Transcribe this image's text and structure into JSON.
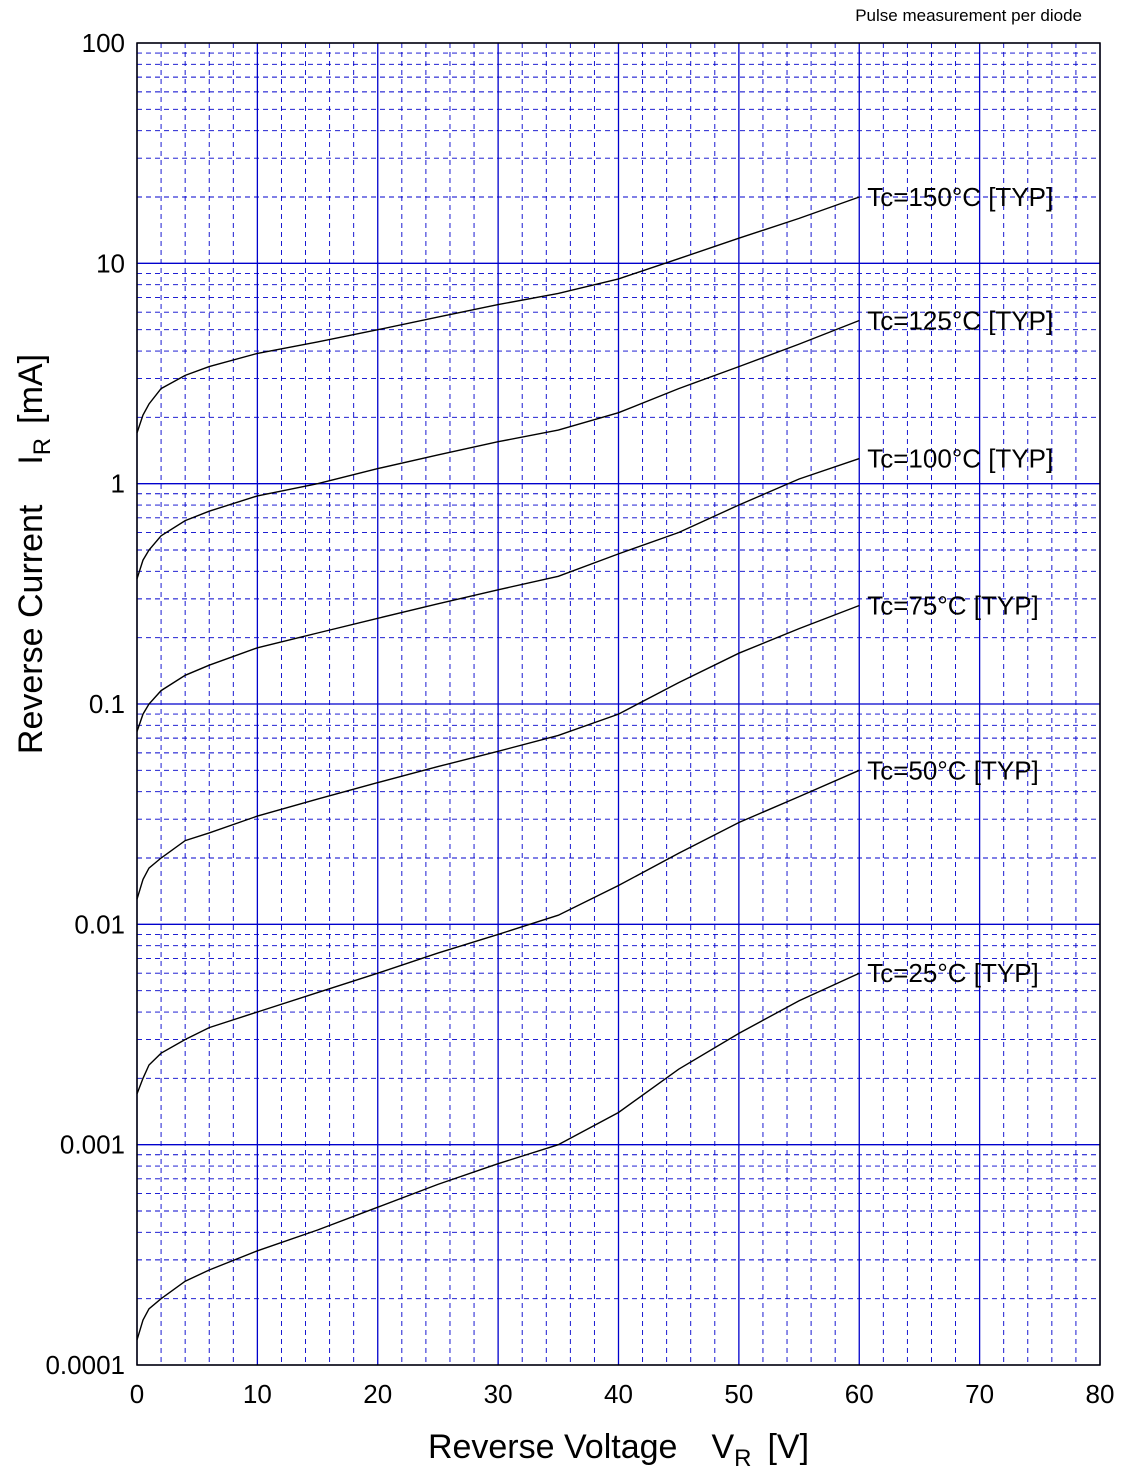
{
  "chart_data": {
    "type": "line",
    "title": "",
    "note": "Pulse measurement per diode",
    "xlabel": {
      "main": "Reverse Voltage",
      "symbol": "V",
      "sub": "R",
      "unit": "[V]"
    },
    "ylabel": {
      "main": "Reverse Current",
      "symbol": "I",
      "sub": "R",
      "unit": "[mA]"
    },
    "xlim": [
      0,
      80
    ],
    "ylim": [
      0.0001,
      100
    ],
    "yscale": "log",
    "grid": true,
    "x_ticks": [
      "0",
      "10",
      "20",
      "30",
      "40",
      "50",
      "60",
      "70",
      "80"
    ],
    "y_ticks": [
      "0.0001",
      "0.001",
      "0.01",
      "0.1",
      "1",
      "10",
      "100"
    ],
    "series": [
      {
        "name": "Tc=150°C [TYP]",
        "x": [
          0,
          0.5,
          1,
          2,
          4,
          6,
          10,
          15,
          20,
          25,
          30,
          35,
          40,
          45,
          50,
          55,
          60
        ],
        "y": [
          1.7,
          2.05,
          2.3,
          2.7,
          3.1,
          3.4,
          3.9,
          4.4,
          5.0,
          5.7,
          6.5,
          7.3,
          8.5,
          10.5,
          13.0,
          16.0,
          20.0
        ]
      },
      {
        "name": "Tc=125°C [TYP]",
        "x": [
          0,
          0.5,
          1,
          2,
          4,
          6,
          10,
          15,
          20,
          25,
          30,
          35,
          40,
          45,
          50,
          55,
          60
        ],
        "y": [
          0.37,
          0.45,
          0.5,
          0.58,
          0.68,
          0.75,
          0.88,
          1.0,
          1.17,
          1.35,
          1.55,
          1.75,
          2.1,
          2.7,
          3.4,
          4.3,
          5.5
        ]
      },
      {
        "name": "Tc=100°C [TYP]",
        "x": [
          0,
          0.5,
          1,
          2,
          4,
          6,
          10,
          15,
          20,
          25,
          30,
          35,
          40,
          45,
          50,
          55,
          60
        ],
        "y": [
          0.075,
          0.09,
          0.1,
          0.115,
          0.135,
          0.15,
          0.18,
          0.21,
          0.245,
          0.285,
          0.33,
          0.38,
          0.48,
          0.6,
          0.8,
          1.05,
          1.3
        ]
      },
      {
        "name": "Tc=75°C [TYP]",
        "x": [
          0,
          0.5,
          1,
          2,
          4,
          6,
          10,
          15,
          20,
          25,
          30,
          35,
          40,
          45,
          50,
          55,
          60
        ],
        "y": [
          0.013,
          0.016,
          0.018,
          0.02,
          0.024,
          0.026,
          0.031,
          0.037,
          0.044,
          0.052,
          0.061,
          0.072,
          0.09,
          0.125,
          0.17,
          0.22,
          0.28
        ]
      },
      {
        "name": "Tc=50°C [TYP]",
        "x": [
          0,
          0.5,
          1,
          2,
          4,
          6,
          10,
          15,
          20,
          25,
          30,
          35,
          40,
          45,
          50,
          55,
          60
        ],
        "y": [
          0.0017,
          0.002,
          0.0023,
          0.0026,
          0.003,
          0.0034,
          0.004,
          0.0049,
          0.006,
          0.0074,
          0.009,
          0.011,
          0.015,
          0.021,
          0.029,
          0.038,
          0.05
        ]
      },
      {
        "name": "Tc=25°C [TYP]",
        "x": [
          0,
          0.5,
          1,
          2,
          4,
          6,
          10,
          15,
          20,
          25,
          30,
          35,
          40,
          45,
          50,
          55,
          60
        ],
        "y": [
          0.00013,
          0.00016,
          0.00018,
          0.0002,
          0.00024,
          0.00027,
          0.00033,
          0.00041,
          0.00052,
          0.00066,
          0.00082,
          0.001,
          0.0014,
          0.0022,
          0.0032,
          0.0045,
          0.006
        ]
      }
    ],
    "colors": {
      "grid": "#0000cc",
      "curve": "#000000",
      "axis": "#000000"
    }
  }
}
